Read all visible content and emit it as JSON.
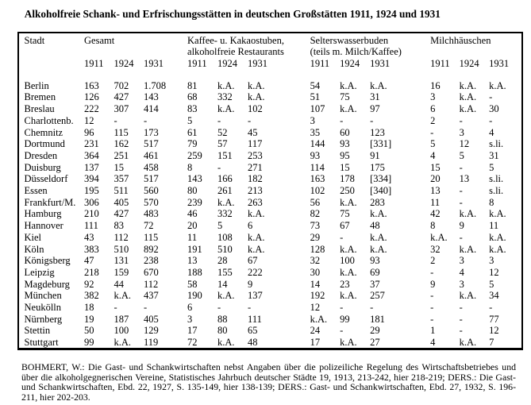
{
  "title": "Alkoholfreie Schank- und Erfrischungsstätten in deutschen Großstätten 1911, 1924 und 1931",
  "table": {
    "city_column_header": "Stadt",
    "year_columns": [
      "1911",
      "1924",
      "1931"
    ],
    "groups": [
      {
        "label_line1": "Gesamt",
        "label_line2": ""
      },
      {
        "label_line1": "Kaffee- u. Kakaostuben,",
        "label_line2": "alkoholfreie Restaurants"
      },
      {
        "label_line1": "Selterswasserbuden",
        "label_line2": "(teils m. Milch/Kaffee)"
      },
      {
        "label_line1": "Milchhäuschen",
        "label_line2": ""
      }
    ],
    "rows": [
      {
        "city": "Berlin",
        "values": [
          "163",
          "702",
          "1.708",
          "81",
          "k.A.",
          "k.A.",
          "54",
          "k.A.",
          "k.A.",
          "16",
          "k.A.",
          "k.A."
        ]
      },
      {
        "city": "Bremen",
        "values": [
          "126",
          "427",
          "143",
          "68",
          "332",
          "k.A.",
          "51",
          "75",
          "31",
          "3",
          "k.A.",
          "-"
        ]
      },
      {
        "city": "Breslau",
        "values": [
          "222",
          "307",
          "414",
          "83",
          "k.A.",
          "102",
          "107",
          "k.A.",
          "97",
          "6",
          "k.A.",
          "30"
        ]
      },
      {
        "city": "Charlottenb.",
        "values": [
          "12",
          "-",
          "-",
          "5",
          "-",
          "-",
          "3",
          "-",
          "-",
          "2",
          "-",
          "-"
        ]
      },
      {
        "city": "Chemnitz",
        "values": [
          "96",
          "115",
          "173",
          "61",
          "52",
          "45",
          "35",
          "60",
          "123",
          "-",
          "3",
          "4"
        ]
      },
      {
        "city": "Dortmund",
        "values": [
          "231",
          "162",
          "517",
          "79",
          "57",
          "117",
          "144",
          "93",
          "[331]",
          "5",
          "12",
          "s.li."
        ]
      },
      {
        "city": "Dresden",
        "values": [
          "364",
          "251",
          "461",
          "259",
          "151",
          "253",
          "93",
          "95",
          "91",
          "4",
          "5",
          "31"
        ]
      },
      {
        "city": "Duisburg",
        "values": [
          "137",
          "15",
          "458",
          "8",
          "-",
          "271",
          "114",
          "15",
          "175",
          "15",
          "-",
          "5"
        ]
      },
      {
        "city": "Düsseldorf",
        "values": [
          "394",
          "357",
          "517",
          "143",
          "166",
          "182",
          "163",
          "178",
          "[334]",
          "20",
          "13",
          "s.li."
        ]
      },
      {
        "city": "Essen",
        "values": [
          "195",
          "511",
          "560",
          "80",
          "261",
          "213",
          "102",
          "250",
          "[340]",
          "13",
          "-",
          "s.li."
        ]
      },
      {
        "city": "Frankfurt/M.",
        "values": [
          "306",
          "405",
          "570",
          "239",
          "k.A.",
          "263",
          "56",
          "k.A.",
          "283",
          "11",
          "-",
          "8"
        ]
      },
      {
        "city": "Hamburg",
        "values": [
          "210",
          "427",
          "483",
          "46",
          "332",
          "k.A.",
          "82",
          "75",
          "k.A.",
          "42",
          "k.A.",
          "k.A."
        ]
      },
      {
        "city": "Hannover",
        "values": [
          "111",
          "83",
          "72",
          "20",
          "5",
          "6",
          "73",
          "67",
          "48",
          "8",
          "9",
          "11"
        ]
      },
      {
        "city": "Kiel",
        "values": [
          "43",
          "112",
          "115",
          "11",
          "108",
          "k.A.",
          "29",
          "-",
          "k.A.",
          "k.A.",
          "-",
          "k.A."
        ]
      },
      {
        "city": "Köln",
        "values": [
          "383",
          "510",
          "892",
          "191",
          "510",
          "k.A.",
          "128",
          "k.A.",
          "k.A.",
          "32",
          "k.A.",
          "k.A."
        ]
      },
      {
        "city": "Königsberg",
        "values": [
          "47",
          "131",
          "238",
          "13",
          "28",
          "67",
          "32",
          "100",
          "93",
          "2",
          "3",
          "3"
        ]
      },
      {
        "city": "Leipzig",
        "values": [
          "218",
          "159",
          "670",
          "188",
          "155",
          "222",
          "30",
          "k.A.",
          "69",
          "-",
          "4",
          "12"
        ]
      },
      {
        "city": "Magdeburg",
        "values": [
          "92",
          "44",
          "112",
          "58",
          "14",
          "9",
          "14",
          "23",
          "37",
          "9",
          "3",
          "5"
        ]
      },
      {
        "city": "München",
        "values": [
          "382",
          "k.A.",
          "437",
          "190",
          "k.A.",
          "137",
          "192",
          "k.A.",
          "257",
          "-",
          "k.A.",
          "34"
        ]
      },
      {
        "city": "Neukölln",
        "values": [
          "18",
          "-",
          "-",
          "6",
          "-",
          "-",
          "12",
          "-",
          "-",
          "-",
          "-",
          "-"
        ]
      },
      {
        "city": "Nürnberg",
        "values": [
          "19",
          "187",
          "405",
          "3",
          "88",
          "111",
          "k.A.",
          "99",
          "181",
          "-",
          "-",
          "77"
        ]
      },
      {
        "city": "Stettin",
        "values": [
          "50",
          "100",
          "129",
          "17",
          "80",
          "65",
          "24",
          "-",
          "29",
          "1",
          "-",
          "12"
        ]
      },
      {
        "city": "Stuttgart",
        "values": [
          "99",
          "k.A.",
          "119",
          "72",
          "k.A.",
          "48",
          "17",
          "k.A.",
          "27",
          "4",
          "k.A.",
          "7"
        ]
      }
    ]
  },
  "footnote_lines": [
    "BOHMERT, W.: Die Gast- und Schankwirtschaften nebst Angaben über die polizeiliche Regelung des Wirtschaftsbetriebes und",
    "über die alkoholgegnerischen Vereine, Statistisches Jahrbuch deutscher Städte 19, 1913, 213-242, hier 218-219; DERS.: Die Gast-",
    "und Schankwirtschaften, Ebd. 22, 1927, S. 135-149, hier 138-139; DERS.: Gast- und Schankwirtschaften, Ebd. 27, 1932, S. 196-",
    "211, hier 202-203."
  ]
}
